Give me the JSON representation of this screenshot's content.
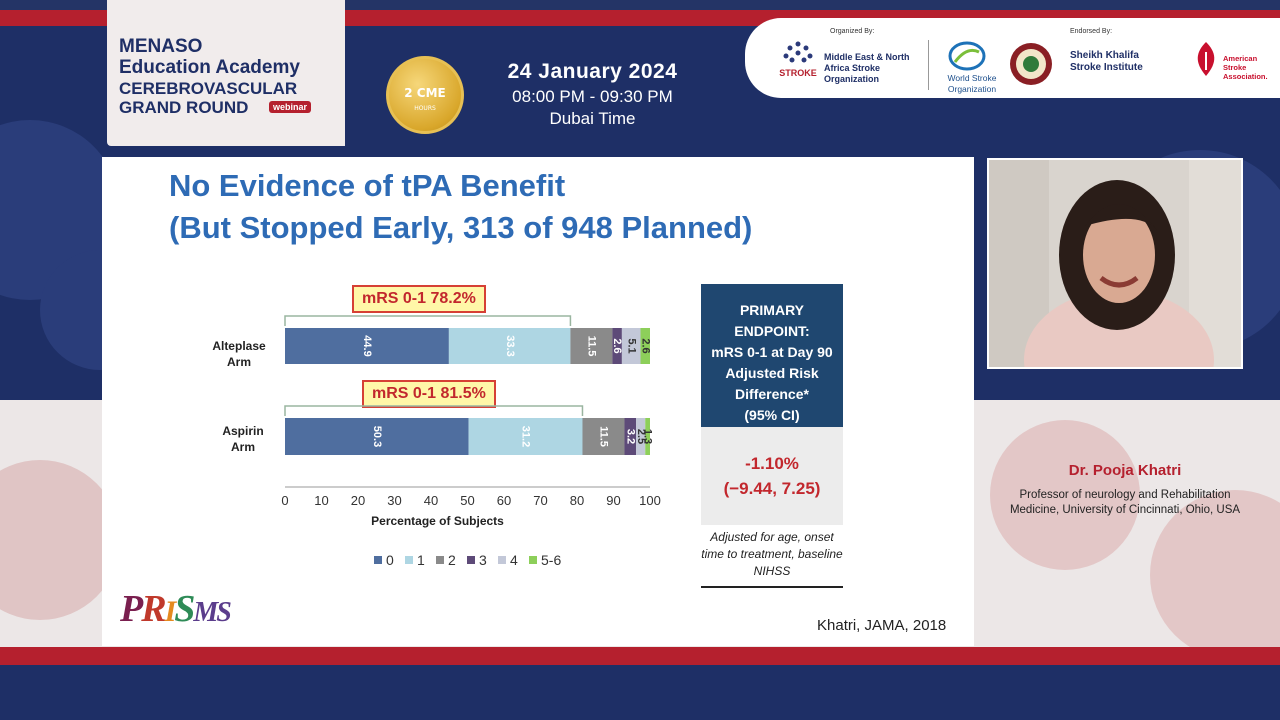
{
  "header": {
    "brand_line1": "MENASO",
    "brand_line2": "Education Academy",
    "brand_line3": "CEREBROVASCULAR",
    "brand_line4": "GRAND ROUND",
    "brand_tag": "webinar",
    "badge_main": "2 CME",
    "badge_sub": "HOURS",
    "date": "24 January 2024",
    "time": "08:00 PM - 09:30 PM",
    "zone": "Dubai Time",
    "organized_by_label": "Organized By:",
    "org1_name": "Middle East & North Africa Stroke Organization",
    "org1_logo": "MENA STROKE ORGANIZATION",
    "org2_name": "World Stroke Organization",
    "endorsed_by_label": "Endorsed By:",
    "org4_name": "Sheikh Khalifa Stroke Institute",
    "org5_name": "American Stroke Association."
  },
  "slide": {
    "title_line1": "No Evidence of tPA Benefit",
    "title_line2": "(But Stopped Early, 313 of 948 Planned)",
    "mrs_alteplase": "mRS 0-1 78.2%",
    "mrs_aspirin": "mRS 0-1 81.5%",
    "arm1_line1": "Alteplase",
    "arm1_line2": "Arm",
    "arm2_line1": "Aspirin",
    "arm2_line2": "Arm",
    "endpoint_lines": [
      "PRIMARY",
      "ENDPOINT:",
      "mRS 0-1 at Day 90",
      "Adjusted Risk",
      "Difference*",
      "(95% CI)"
    ],
    "endpoint_value1": "-1.10%",
    "endpoint_value2": "(−9.44, 7.25)",
    "note": "Adjusted for age, onset time to treatment, baseline NIHSS",
    "citation": "Khatri, JAMA, 2018",
    "logo_text": "PRISMS"
  },
  "speaker": {
    "name": "Dr. Pooja Khatri",
    "title": "Professor of neurology and Rehabilitation Medicine, University of Cincinnati, Ohio, USA"
  },
  "chart_data": {
    "type": "bar",
    "orientation": "horizontal-stacked",
    "categories": [
      "Alteplase Arm",
      "Aspirin Arm"
    ],
    "series": [
      {
        "name": "0",
        "values": [
          44.9,
          50.3
        ],
        "color": "#4f6e9f"
      },
      {
        "name": "1",
        "values": [
          33.3,
          31.2
        ],
        "color": "#aed6e3"
      },
      {
        "name": "2",
        "values": [
          11.5,
          11.5
        ],
        "color": "#8a8a8a"
      },
      {
        "name": "3",
        "values": [
          2.6,
          3.2
        ],
        "color": "#5d4a78"
      },
      {
        "name": "4",
        "values": [
          5.1,
          2.5
        ],
        "color": "#c3c8d8"
      },
      {
        "name": "5-6",
        "values": [
          2.6,
          1.3
        ],
        "color": "#8dcf5a"
      }
    ],
    "xlabel": "Percentage of Subjects",
    "xlim": [
      0,
      100
    ],
    "xticks": [
      0,
      10,
      20,
      30,
      40,
      50,
      60,
      70,
      80,
      90,
      100
    ],
    "legend_position": "bottom"
  }
}
